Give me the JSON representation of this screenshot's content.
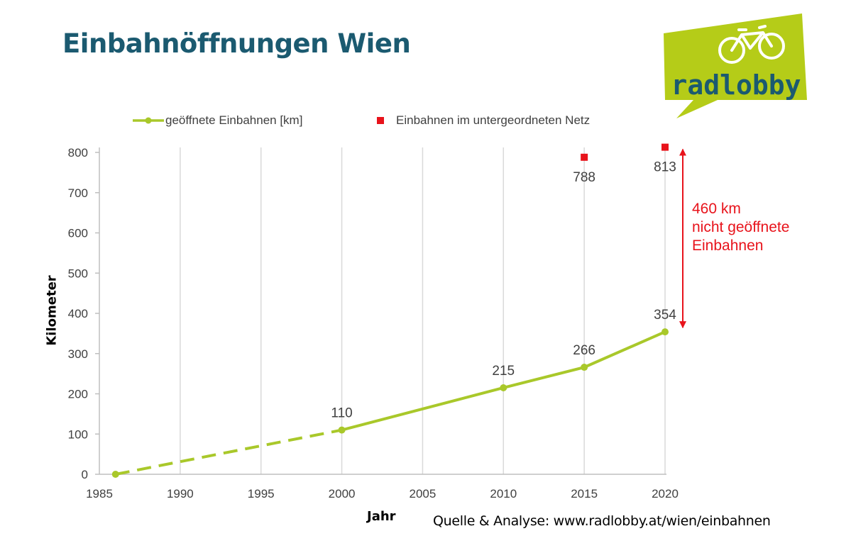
{
  "title": "Einbahnöffnungen Wien",
  "logo": {
    "text": "radlobby",
    "bg_color": "#b5cc18",
    "text_color": "#1b5a70",
    "icon": "bicycle-icon"
  },
  "legend": {
    "line_label": "geöffnete Einbahnen [km]",
    "marker_label": "Einbahnen im untergeordneten Netz"
  },
  "source_note": "Quelle & Analyse: www.radlobby.at/wien/einbahnen",
  "annotation": {
    "lines": [
      "460 km",
      "nicht geöffnete",
      "Einbahnen"
    ],
    "color": "#e8131b"
  },
  "chart_data": {
    "type": "line",
    "xlabel": "Jahr",
    "ylabel": "Kilometer",
    "xlim": [
      1985,
      2020
    ],
    "ylim": [
      0,
      800
    ],
    "x_ticks": [
      1985,
      1990,
      1995,
      2000,
      2005,
      2010,
      2015,
      2020
    ],
    "y_ticks": [
      0,
      100,
      200,
      300,
      400,
      500,
      600,
      700,
      800
    ],
    "grid": true,
    "legend_position": "top",
    "series": [
      {
        "name": "geöffnete Einbahnen [km]",
        "type": "line",
        "color": "#a9c82a",
        "x": [
          1986,
          2000,
          2010,
          2015,
          2020
        ],
        "y": [
          0,
          110,
          215,
          266,
          354
        ],
        "labels": [
          "",
          "110",
          "215",
          "266",
          "354"
        ],
        "dashed_until_x": 2000
      },
      {
        "name": "Einbahnen im untergeordneten Netz",
        "type": "scatter",
        "color": "#e8131b",
        "marker": "square",
        "x": [
          2015,
          2020
        ],
        "y": [
          788,
          813
        ],
        "labels": [
          "788",
          "813"
        ]
      }
    ],
    "annotation": {
      "text": "460 km nicht geöffnete Einbahnen",
      "x": 2020,
      "y_from": 354,
      "y_to": 813,
      "color": "#e8131b"
    }
  }
}
